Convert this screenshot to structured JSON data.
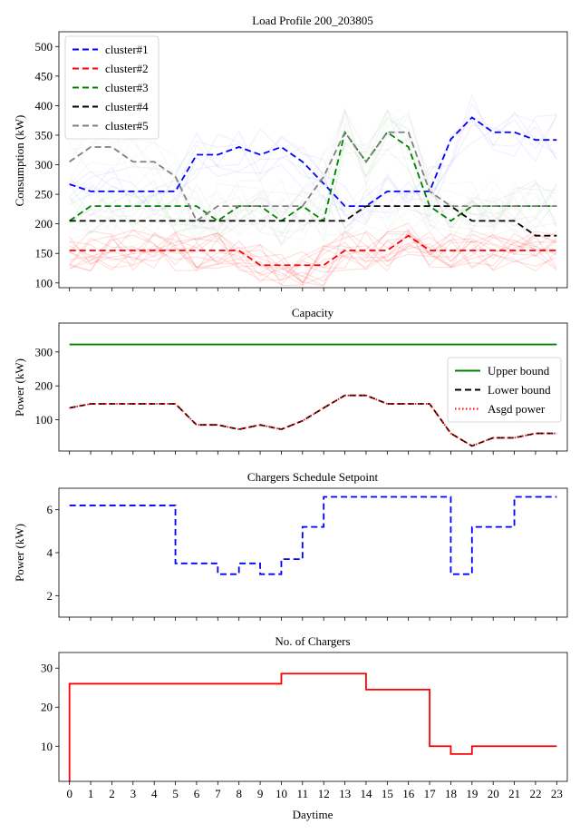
{
  "figure": {
    "xlabel": "Daytime"
  },
  "chart_data": [
    {
      "type": "line",
      "title": "Load Profile 200_203805",
      "xlabel": "",
      "ylabel": "Consumption (kW)",
      "xlim": [
        -0.5,
        23.5
      ],
      "ylim": [
        92,
        525
      ],
      "yticks": [
        100,
        150,
        200,
        250,
        300,
        350,
        400,
        450,
        500
      ],
      "grid": false,
      "legend_position": "top-left",
      "background_traces": "faint per-customer load profiles (translucent red, blue, green, grey)",
      "x": [
        0,
        1,
        2,
        3,
        4,
        5,
        6,
        7,
        8,
        9,
        10,
        11,
        12,
        13,
        14,
        15,
        16,
        17,
        18,
        19,
        20,
        21,
        22,
        23
      ],
      "series": [
        {
          "name": "cluster#1",
          "color": "#0000ff",
          "style": "dashed",
          "values": [
            267,
            255,
            255,
            255,
            255,
            255,
            317,
            317,
            330,
            317,
            330,
            305,
            268,
            230,
            230,
            255,
            255,
            255,
            343,
            380,
            355,
            355,
            342,
            342
          ]
        },
        {
          "name": "cluster#2",
          "color": "#ff0000",
          "style": "dashed",
          "values": [
            155,
            155,
            155,
            155,
            155,
            155,
            155,
            155,
            155,
            130,
            130,
            130,
            130,
            155,
            155,
            155,
            180,
            155,
            155,
            155,
            155,
            155,
            155,
            155
          ]
        },
        {
          "name": "cluster#3",
          "color": "#008000",
          "style": "dashed",
          "values": [
            205,
            230,
            230,
            230,
            230,
            230,
            230,
            205,
            230,
            230,
            205,
            230,
            205,
            355,
            305,
            355,
            330,
            230,
            205,
            230,
            230,
            230,
            230,
            230
          ]
        },
        {
          "name": "cluster#4",
          "color": "#000000",
          "style": "dashed",
          "values": [
            205,
            205,
            205,
            205,
            205,
            205,
            205,
            205,
            205,
            205,
            205,
            205,
            205,
            205,
            230,
            230,
            230,
            230,
            230,
            205,
            205,
            205,
            180,
            180
          ]
        },
        {
          "name": "cluster#5",
          "color": "#808080",
          "style": "dashed",
          "values": [
            305,
            330,
            330,
            305,
            305,
            280,
            205,
            230,
            230,
            230,
            230,
            230,
            280,
            355,
            305,
            355,
            355,
            255,
            230,
            230,
            230,
            230,
            230,
            230
          ]
        }
      ]
    },
    {
      "type": "line",
      "title": "Capacity",
      "xlabel": "",
      "ylabel": "Power (kW)",
      "xlim": [
        -0.5,
        23.5
      ],
      "ylim": [
        8,
        385
      ],
      "yticks": [
        100,
        200,
        300
      ],
      "grid": false,
      "legend_position": "center-right",
      "x": [
        0,
        1,
        2,
        3,
        4,
        5,
        6,
        7,
        8,
        9,
        10,
        11,
        12,
        13,
        14,
        15,
        16,
        17,
        18,
        19,
        20,
        21,
        22,
        23
      ],
      "series": [
        {
          "name": "Upper bound",
          "color": "#008000",
          "style": "solid",
          "values": [
            322,
            322,
            322,
            322,
            322,
            322,
            322,
            322,
            322,
            322,
            322,
            322,
            322,
            322,
            322,
            322,
            322,
            322,
            322,
            322,
            322,
            322,
            322,
            322
          ]
        },
        {
          "name": "Lower bound",
          "color": "#000000",
          "style": "dashed",
          "values": [
            135,
            147,
            147,
            147,
            147,
            147,
            85,
            85,
            72,
            85,
            72,
            97,
            135,
            172,
            172,
            147,
            147,
            147,
            60,
            23,
            47,
            47,
            60,
            60
          ]
        },
        {
          "name": "Asgd power",
          "color": "#ff0000",
          "style": "dotted",
          "values": [
            135,
            147,
            147,
            147,
            147,
            147,
            85,
            85,
            72,
            85,
            72,
            97,
            135,
            172,
            172,
            147,
            147,
            147,
            60,
            23,
            47,
            47,
            60,
            60
          ]
        }
      ]
    },
    {
      "type": "line",
      "title": "Chargers Schedule Setpoint",
      "xlabel": "",
      "ylabel": "Power (kW)",
      "xlim": [
        -0.5,
        23.5
      ],
      "ylim": [
        1.0,
        7.0
      ],
      "yticks": [
        2,
        4,
        6
      ],
      "grid": false,
      "x": [
        0,
        1,
        2,
        3,
        4,
        5,
        6,
        7,
        8,
        9,
        10,
        11,
        12,
        13,
        14,
        15,
        16,
        17,
        18,
        19,
        20,
        21,
        22,
        23
      ],
      "series": [
        {
          "color": "#0000ff",
          "style": "dashed-step",
          "values": [
            6.2,
            6.2,
            6.2,
            6.2,
            6.2,
            3.5,
            3.5,
            3.0,
            3.5,
            3.0,
            3.7,
            5.2,
            6.6,
            6.6,
            6.6,
            6.6,
            6.6,
            6.6,
            3.0,
            5.2,
            5.2,
            6.6,
            6.6,
            6.6
          ]
        }
      ]
    },
    {
      "type": "line",
      "title": "No. of Chargers",
      "xlabel": "Daytime",
      "ylabel": "",
      "xlim": [
        -0.5,
        23.5
      ],
      "ylim": [
        1,
        34
      ],
      "yticks": [
        10,
        20,
        30
      ],
      "xticks": [
        "0",
        "1",
        "2",
        "3",
        "4",
        "5",
        "6",
        "7",
        "8",
        "9",
        "10",
        "11",
        "12",
        "13",
        "14",
        "15",
        "16",
        "17",
        "18",
        "19",
        "20",
        "21",
        "22",
        "23"
      ],
      "grid": false,
      "x": [
        0,
        1,
        2,
        3,
        4,
        5,
        6,
        7,
        8,
        9,
        10,
        11,
        12,
        13,
        14,
        15,
        16,
        17,
        18,
        19,
        20,
        21,
        22,
        23
      ],
      "series": [
        {
          "color": "#ff0000",
          "style": "solid-step",
          "start_value": 1,
          "values": [
            26,
            26,
            26,
            26,
            26,
            26,
            26,
            26,
            26,
            26,
            28.6,
            28.6,
            28.6,
            28.6,
            24.5,
            24.5,
            24.5,
            10,
            8,
            10,
            10,
            10,
            10,
            10
          ]
        }
      ]
    }
  ]
}
